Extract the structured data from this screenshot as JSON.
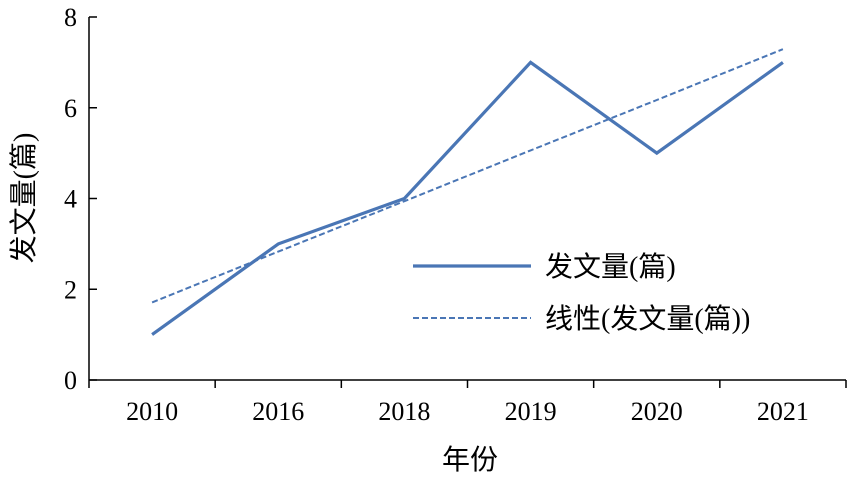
{
  "chart_data": {
    "type": "line",
    "categories": [
      "2010",
      "2016",
      "2018",
      "2019",
      "2020",
      "2021"
    ],
    "series": [
      {
        "name": "发文量(篇)",
        "values": [
          1,
          3,
          4,
          7,
          5,
          7
        ],
        "style": "solid",
        "color": "#4A76B5"
      },
      {
        "name": "线性(发文量(篇))",
        "values": [
          1.71,
          2.83,
          3.94,
          5.06,
          6.17,
          7.29
        ],
        "style": "dashed",
        "color": "#4A76B5"
      }
    ],
    "xlabel": "年份",
    "ylabel": "发文量(篇)",
    "ylim": [
      0,
      8
    ],
    "yticks": [
      0,
      2,
      4,
      6,
      8
    ],
    "grid": false,
    "legend_position": "center-right"
  }
}
